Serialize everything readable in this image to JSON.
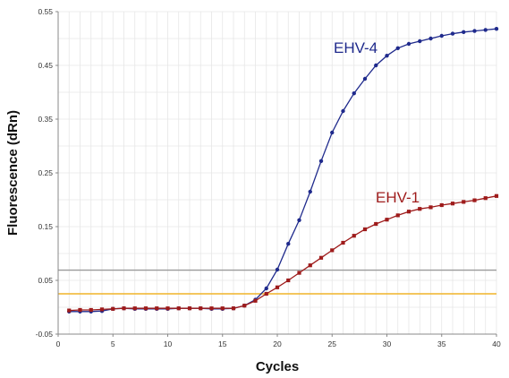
{
  "chart_data": {
    "type": "line",
    "title": "",
    "xlabel": "Cycles",
    "ylabel": "Fluorescence (dRn)",
    "xlim": [
      0,
      40
    ],
    "ylim": [
      -0.05,
      0.55
    ],
    "x_ticks": [
      0,
      5,
      10,
      15,
      20,
      25,
      30,
      35,
      40
    ],
    "y_ticks": [
      -0.05,
      0.05,
      0.15,
      0.25,
      0.35,
      0.45,
      0.55
    ],
    "x_tick_labels": [
      "0",
      "5",
      "10",
      "15",
      "20",
      "25",
      "30",
      "35",
      "40"
    ],
    "y_tick_labels": [
      "-0.05",
      "0.05",
      "0.15",
      "0.25",
      "0.35",
      "0.45",
      "0.55"
    ],
    "grid": true,
    "x": [
      1,
      2,
      3,
      4,
      5,
      6,
      7,
      8,
      9,
      10,
      11,
      12,
      13,
      14,
      15,
      16,
      17,
      18,
      19,
      20,
      21,
      22,
      23,
      24,
      25,
      26,
      27,
      28,
      29,
      30,
      31,
      32,
      33,
      34,
      35,
      36,
      37,
      38,
      39,
      40
    ],
    "series": [
      {
        "name": "EHV-4",
        "color": "#1f2a8c",
        "values": [
          -0.008,
          -0.008,
          -0.008,
          -0.007,
          -0.003,
          -0.002,
          -0.003,
          -0.003,
          -0.003,
          -0.003,
          -0.002,
          -0.002,
          -0.002,
          -0.003,
          -0.003,
          -0.002,
          0.003,
          0.014,
          0.035,
          0.07,
          0.118,
          0.162,
          0.215,
          0.272,
          0.325,
          0.365,
          0.398,
          0.425,
          0.45,
          0.468,
          0.482,
          0.49,
          0.495,
          0.5,
          0.505,
          0.509,
          0.512,
          0.514,
          0.516,
          0.518
        ]
      },
      {
        "name": "EHV-1",
        "color": "#9e1b1b",
        "values": [
          -0.006,
          -0.005,
          -0.005,
          -0.004,
          -0.003,
          -0.002,
          -0.002,
          -0.002,
          -0.002,
          -0.002,
          -0.002,
          -0.002,
          -0.002,
          -0.002,
          -0.002,
          -0.002,
          0.003,
          0.012,
          0.025,
          0.037,
          0.05,
          0.064,
          0.078,
          0.092,
          0.106,
          0.12,
          0.133,
          0.145,
          0.155,
          0.163,
          0.171,
          0.178,
          0.183,
          0.186,
          0.19,
          0.193,
          0.196,
          0.199,
          0.203,
          0.207
        ]
      }
    ],
    "thresholds": [
      {
        "value": 0.069,
        "color": "#9a9a9a"
      },
      {
        "value": 0.025,
        "color": "#f0b429"
      }
    ]
  }
}
